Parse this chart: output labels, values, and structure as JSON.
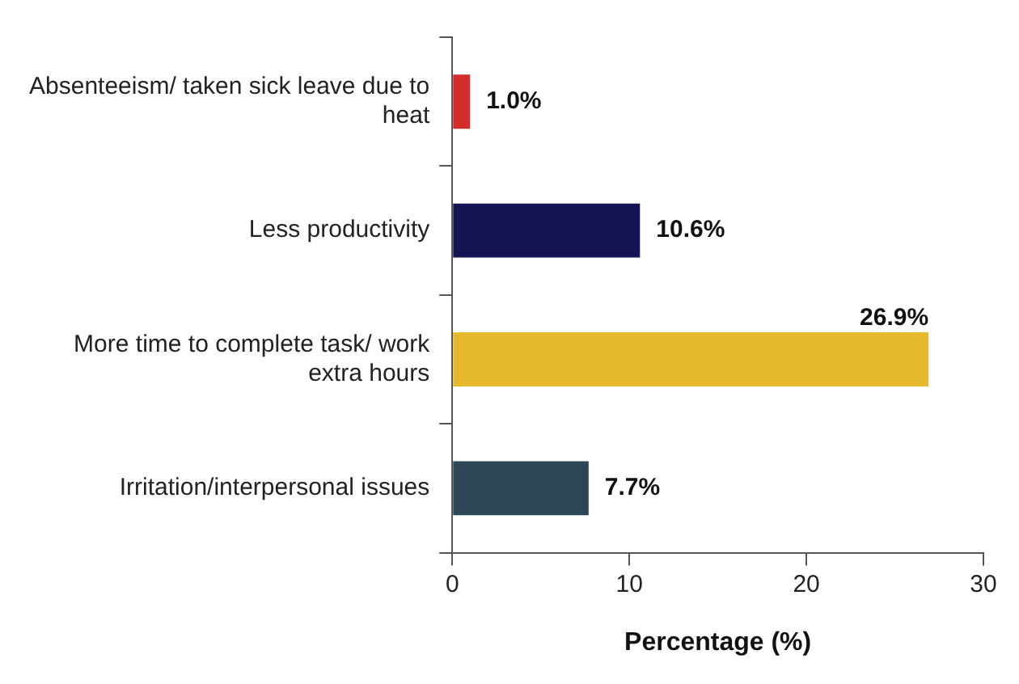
{
  "chart_data": {
    "type": "bar",
    "orientation": "horizontal",
    "xlabel": "Percentage (%)",
    "categories": [
      "Absenteeism/ taken sick leave due to heat",
      "Less productivity",
      "More time to complete task/ work extra hours",
      "Irritation/interpersonal issues"
    ],
    "values": [
      1.0,
      10.6,
      26.9,
      7.7
    ],
    "colors": [
      "#d42b2b",
      "#141452",
      "#e5b92b",
      "#2e4757"
    ],
    "value_labels": [
      "1.0%",
      "10.6%",
      "26.9%",
      "7.7%"
    ],
    "xlim": [
      0,
      30
    ],
    "xticks": [
      0,
      10,
      20,
      30
    ],
    "grid": false,
    "legend": false
  }
}
